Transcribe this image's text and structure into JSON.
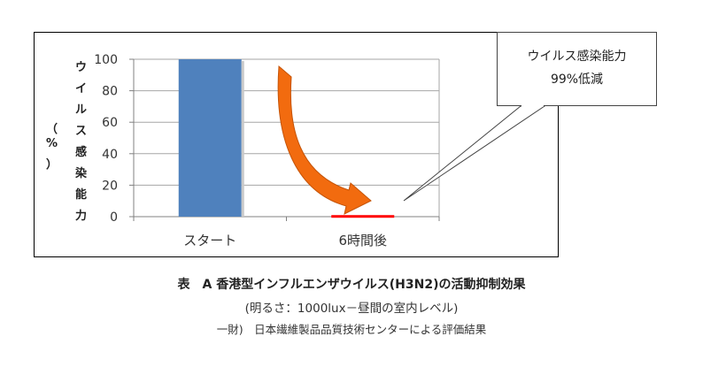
{
  "chart_data": {
    "type": "bar",
    "categories": [
      "スタート",
      "6時間後"
    ],
    "values": [
      100,
      1
    ],
    "ylabel": "ウイルス感染能力（%）",
    "ylim": [
      0,
      100
    ],
    "yticks": [
      0,
      20,
      40,
      60,
      80,
      100
    ],
    "grid": true,
    "series_colors": [
      "#4f81bd",
      "#ff0000"
    ],
    "arrow_color": "#f26b0f"
  },
  "ylabel_chars": [
    "ウ",
    "イ",
    "ル",
    "ス",
    "感",
    "染",
    "能",
    "力"
  ],
  "ylabel_unit": [
    "（",
    "%",
    "）"
  ],
  "callout": {
    "line1": "ウイルス感染能力",
    "line2": "99%低減"
  },
  "caption": {
    "title": "表　A 香港型インフルエンザウイルス(H3N2)の活動抑制効果",
    "subtitle": "(明るさ：1000lux－昼間の室内レベル)",
    "source": "一財)　日本繊維製品品質技術センターによる評価結果"
  }
}
